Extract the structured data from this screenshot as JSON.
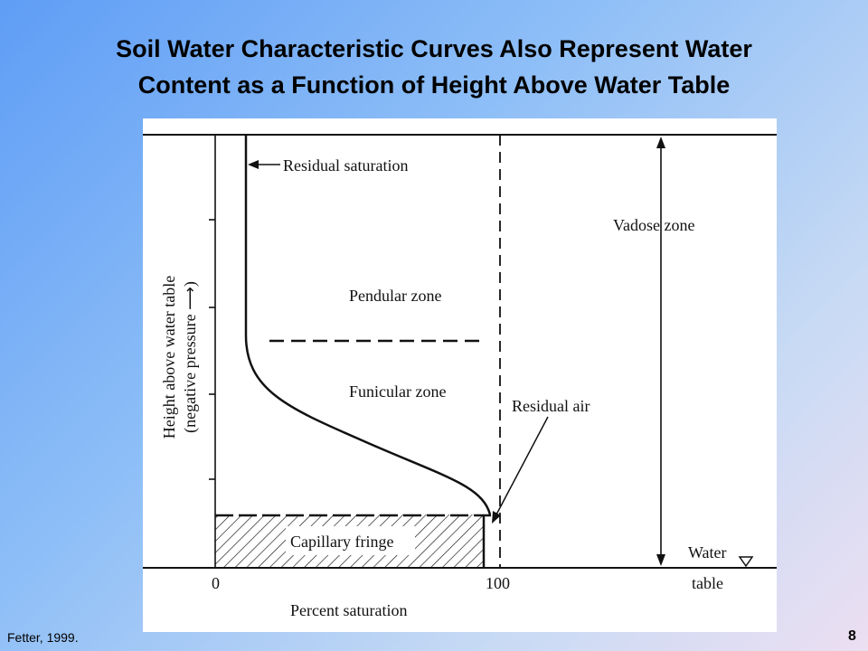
{
  "slide": {
    "title_line1": "Soil Water Characteristic Curves Also Represent Water",
    "title_line2": "Content as a Function of Height Above Water Table",
    "credit": "Fetter, 1999.",
    "page_number": "8"
  },
  "figure": {
    "y_axis_label_line1": "Height above water table",
    "y_axis_label_line2": "(negative pressure ⟶)",
    "x_axis_label": "Percent saturation",
    "x_tick_0": "0",
    "x_tick_100": "100",
    "water_table_label_line1": "Water",
    "water_table_label_line2": "table",
    "zones": {
      "vadose": "Vadose zone",
      "pendular": "Pendular zone",
      "funicular": "Funicular zone",
      "capillary_fringe": "Capillary fringe"
    },
    "annotations": {
      "residual_saturation": "Residual saturation",
      "residual_air": "Residual air"
    },
    "colors": {
      "line": "#111111",
      "background": "#ffffff"
    }
  }
}
